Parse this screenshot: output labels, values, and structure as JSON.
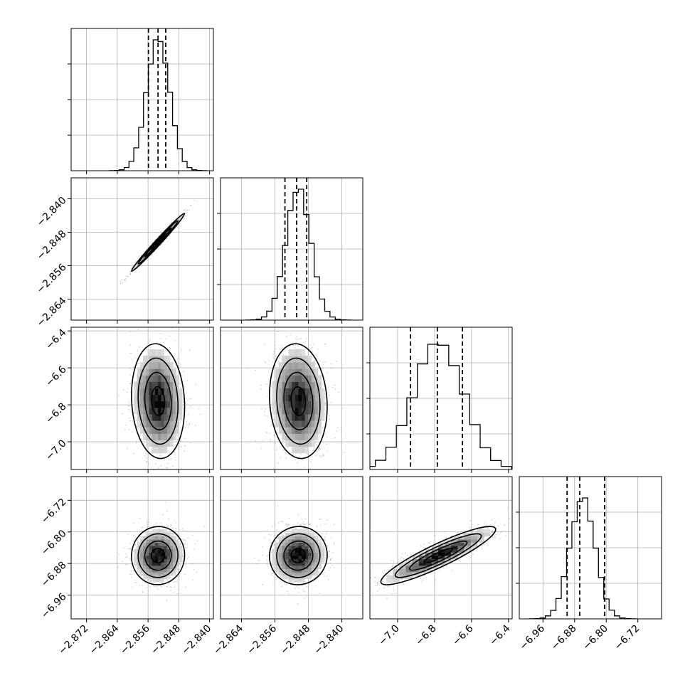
{
  "chart_data": {
    "type": "corner",
    "parameters": [
      {
        "range": [
          -2.876,
          -2.839
        ],
        "ticks": [
          -2.872,
          -2.864,
          -2.856,
          -2.848,
          -2.84
        ],
        "tick_labels": [
          "−2.872",
          "−2.864",
          "−2.856",
          "−2.848",
          "−2.840"
        ]
      },
      {
        "range": [
          -2.869,
          -2.835
        ],
        "ticks": [
          -2.864,
          -2.856,
          -2.848,
          -2.84
        ],
        "tick_labels": [
          "−2.864",
          "−2.856",
          "−2.848",
          "−2.840"
        ]
      },
      {
        "range": [
          -7.15,
          -6.38
        ],
        "ticks": [
          -7.0,
          -6.8,
          -6.6,
          -6.4
        ],
        "tick_labels": [
          "−7.0",
          "−6.8",
          "−6.6",
          "−6.4"
        ]
      },
      {
        "range": [
          -7.02,
          -6.66
        ],
        "ticks": [
          -6.96,
          -6.88,
          -6.8,
          -6.72
        ],
        "tick_labels": [
          "−6.96",
          "−6.88",
          "−6.80",
          "−6.72"
        ]
      }
    ],
    "marginals": [
      {
        "mean": -2.8534,
        "sd": 0.003,
        "quantiles": [
          -2.8559,
          -2.8534,
          -2.8514
        ],
        "peak": 0.92
      },
      {
        "mean": -2.8504,
        "sd": 0.003,
        "quantiles": [
          -2.8536,
          -2.8508,
          -2.8484
        ],
        "peak": 0.92
      },
      {
        "mean": -6.78,
        "sd": 0.135,
        "quantiles": [
          -6.931,
          -6.785,
          -6.649
        ],
        "peak": 0.88
      },
      {
        "mean": -6.86,
        "sd": 0.032,
        "quantiles": [
          -6.899,
          -6.867,
          -6.804
        ],
        "peak": 0.85
      }
    ],
    "correlations": {
      "1-0": 0.99,
      "2-0": -0.1,
      "2-1": -0.1,
      "3-0": 0.02,
      "3-1": 0.02,
      "3-2": 0.9
    },
    "contour_levels_sigma": [
      0.5,
      1.0,
      1.5,
      2.0
    ],
    "quantile_style": "dashed",
    "grid": true,
    "colors": {
      "line": "#000000",
      "density": "#000000",
      "grid": "#b0b0b0",
      "scatter": "#8c8c8c"
    }
  }
}
